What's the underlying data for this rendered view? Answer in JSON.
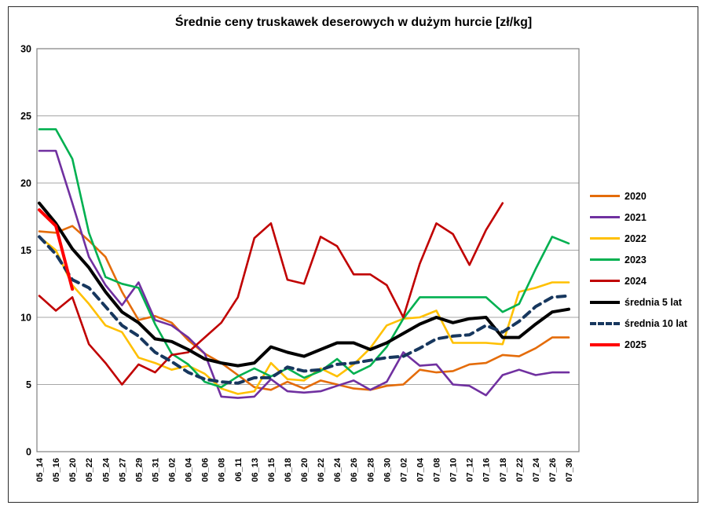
{
  "chart_data": {
    "type": "line",
    "title": "Średnie ceny truskawek deserowych w dużym hurcie [zł/kg]",
    "xlabel": "",
    "ylabel": "",
    "ylim": [
      0,
      30
    ],
    "yticks": [
      0,
      5,
      10,
      15,
      20,
      25,
      30
    ],
    "grid": "horizontal",
    "legend_position": "right",
    "axis_color": "#808080",
    "gridline_color": "#a6a6a6",
    "categories": [
      "05_14",
      "05_16",
      "05_20",
      "05_22",
      "05_24",
      "05_27",
      "05_29",
      "05_31",
      "06_02",
      "06_04",
      "06_06",
      "06_08",
      "06_11",
      "06_13",
      "06_15",
      "06_18",
      "06_20",
      "06_22",
      "06_24",
      "06_26",
      "06_28",
      "06_30",
      "07_02",
      "07_04",
      "07_08",
      "07_10",
      "07_12",
      "07_16",
      "07_18",
      "07_22",
      "07_24",
      "07_26",
      "07_30"
    ],
    "series": [
      {
        "name": "2020",
        "color": "#E46C0A",
        "style": "solid",
        "thick": false,
        "values": [
          16.4,
          16.3,
          16.8,
          15.7,
          14.5,
          11.9,
          9.8,
          10.1,
          9.6,
          8.3,
          7.3,
          6.6,
          5.7,
          4.8,
          4.6,
          5.2,
          4.7,
          5.3,
          5.0,
          4.7,
          4.6,
          4.9,
          5.0,
          6.1,
          5.9,
          6.0,
          6.5,
          6.6,
          7.2,
          7.1,
          7.7,
          8.5,
          8.5
        ]
      },
      {
        "name": "2021",
        "color": "#7030A0",
        "style": "solid",
        "thick": false,
        "values": [
          22.4,
          22.4,
          18.5,
          14.5,
          12.4,
          10.9,
          12.6,
          9.8,
          9.4,
          8.5,
          7.3,
          4.1,
          4.0,
          4.1,
          5.4,
          4.5,
          4.4,
          4.5,
          4.9,
          5.3,
          4.6,
          5.2,
          7.4,
          6.4,
          6.5,
          5.0,
          4.9,
          4.2,
          5.7,
          6.1,
          5.7,
          5.9,
          5.9
        ]
      },
      {
        "name": "2022",
        "color": "#FFC000",
        "style": "solid",
        "thick": false,
        "values": [
          16.0,
          15.0,
          12.4,
          11.0,
          9.4,
          8.9,
          7.0,
          6.6,
          6.1,
          6.4,
          5.8,
          4.7,
          4.3,
          4.5,
          6.6,
          5.4,
          5.3,
          6.2,
          5.6,
          6.5,
          7.7,
          9.4,
          9.9,
          10.0,
          10.5,
          8.1,
          8.1,
          8.1,
          8.0,
          11.9,
          12.2,
          12.6,
          12.6
        ]
      },
      {
        "name": "2023",
        "color": "#00B050",
        "style": "solid",
        "thick": false,
        "values": [
          24.0,
          24.0,
          21.8,
          16.3,
          13.0,
          12.5,
          12.2,
          9.5,
          7.3,
          6.5,
          5.2,
          4.8,
          5.6,
          6.2,
          5.6,
          6.2,
          5.5,
          6.0,
          6.9,
          5.8,
          6.4,
          7.8,
          9.9,
          11.5,
          11.5,
          11.5,
          11.5,
          11.5,
          10.4,
          11.0,
          13.6,
          16.0,
          15.5
        ]
      },
      {
        "name": "2024",
        "color": "#C00000",
        "style": "solid",
        "thick": false,
        "values": [
          11.6,
          10.5,
          11.5,
          8.0,
          6.6,
          5.0,
          6.5,
          5.9,
          7.2,
          7.4,
          8.5,
          9.6,
          11.5,
          15.9,
          17.0,
          12.8,
          12.5,
          16.0,
          15.3,
          13.2,
          13.2,
          12.4,
          10.0,
          14.0,
          17.0,
          16.2,
          13.9,
          16.5,
          18.5,
          null,
          null,
          null,
          null
        ]
      },
      {
        "name": "średnia 5 lat",
        "color": "#000000",
        "style": "solid",
        "thick": true,
        "values": [
          18.5,
          17.0,
          15.1,
          13.7,
          11.9,
          10.4,
          9.6,
          8.4,
          8.2,
          7.6,
          6.9,
          6.6,
          6.4,
          6.6,
          7.8,
          7.4,
          7.1,
          7.6,
          8.1,
          8.1,
          7.6,
          8.1,
          8.8,
          9.5,
          10.0,
          9.6,
          9.9,
          10.0,
          8.5,
          8.5,
          9.5,
          10.4,
          10.6
        ]
      },
      {
        "name": "średnia 10 lat",
        "color": "#17375E",
        "style": "dashed",
        "thick": true,
        "values": [
          16.0,
          14.7,
          12.8,
          12.2,
          10.8,
          9.4,
          8.6,
          7.4,
          6.7,
          5.9,
          5.4,
          5.2,
          5.1,
          5.5,
          5.5,
          6.3,
          6.0,
          6.1,
          6.5,
          6.6,
          6.8,
          7.0,
          7.1,
          7.7,
          8.4,
          8.6,
          8.7,
          9.4,
          8.9,
          9.7,
          10.8,
          11.5,
          11.6
        ]
      },
      {
        "name": "2025",
        "color": "#FF0000",
        "style": "solid",
        "thick": true,
        "values": [
          18.0,
          16.8,
          12.1,
          null,
          null,
          null,
          null,
          null,
          null,
          null,
          null,
          null,
          null,
          null,
          null,
          null,
          null,
          null,
          null,
          null,
          null,
          null,
          null,
          null,
          null,
          null,
          null,
          null,
          null,
          null,
          null,
          null,
          null
        ]
      }
    ]
  }
}
